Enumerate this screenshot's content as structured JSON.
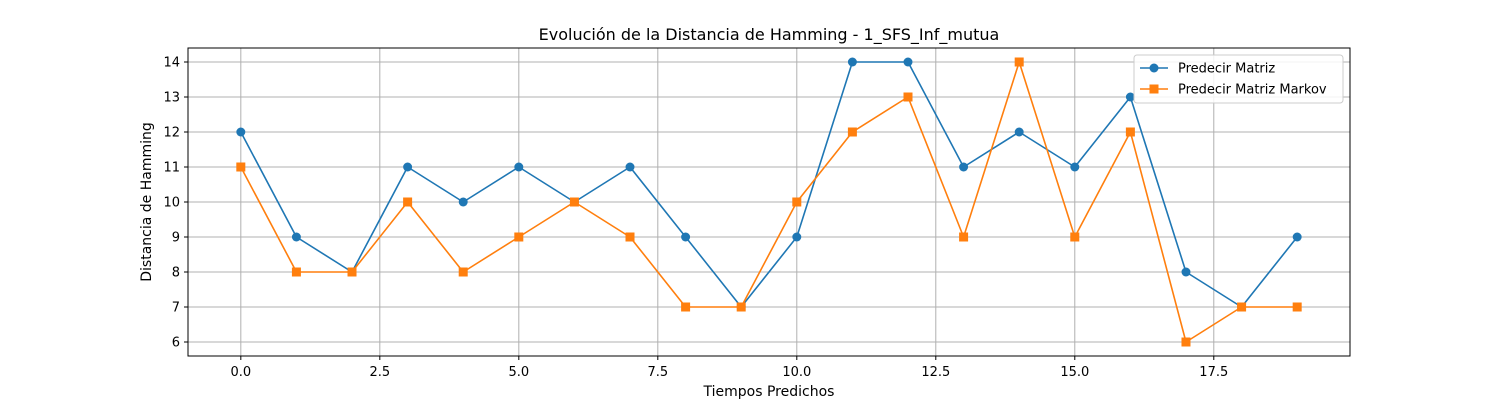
{
  "chart_data": {
    "type": "line",
    "title": "Evolución de la Distancia de Hamming - 1_SFS_Inf_mutua",
    "xlabel": "Tiempos Predichos",
    "ylabel": "Distancia de Hamming",
    "xlim": [
      -0.95,
      19.95
    ],
    "ylim": [
      5.6,
      14.4
    ],
    "xticks": [
      0.0,
      2.5,
      5.0,
      7.5,
      10.0,
      12.5,
      15.0,
      17.5
    ],
    "xtick_labels": [
      "0.0",
      "2.5",
      "5.0",
      "7.5",
      "10.0",
      "12.5",
      "15.0",
      "17.5"
    ],
    "yticks": [
      6,
      7,
      8,
      9,
      10,
      11,
      12,
      13,
      14
    ],
    "ytick_labels": [
      "6",
      "7",
      "8",
      "9",
      "10",
      "11",
      "12",
      "13",
      "14"
    ],
    "grid": true,
    "legend_position": "upper right",
    "x": [
      0,
      1,
      2,
      3,
      4,
      5,
      6,
      7,
      8,
      9,
      10,
      11,
      12,
      13,
      14,
      15,
      16,
      17,
      18,
      19
    ],
    "series": [
      {
        "name": "Predecir Matriz",
        "color": "#1f77b4",
        "marker": "circle",
        "values": [
          12,
          9,
          8,
          11,
          10,
          11,
          10,
          11,
          9,
          7,
          9,
          14,
          14,
          11,
          12,
          11,
          13,
          8,
          7,
          9
        ]
      },
      {
        "name": "Predecir Matriz Markov",
        "color": "#ff7f0e",
        "marker": "square",
        "values": [
          11,
          8,
          8,
          10,
          8,
          9,
          10,
          9,
          7,
          7,
          10,
          12,
          13,
          9,
          14,
          9,
          12,
          6,
          7,
          7
        ]
      }
    ]
  }
}
